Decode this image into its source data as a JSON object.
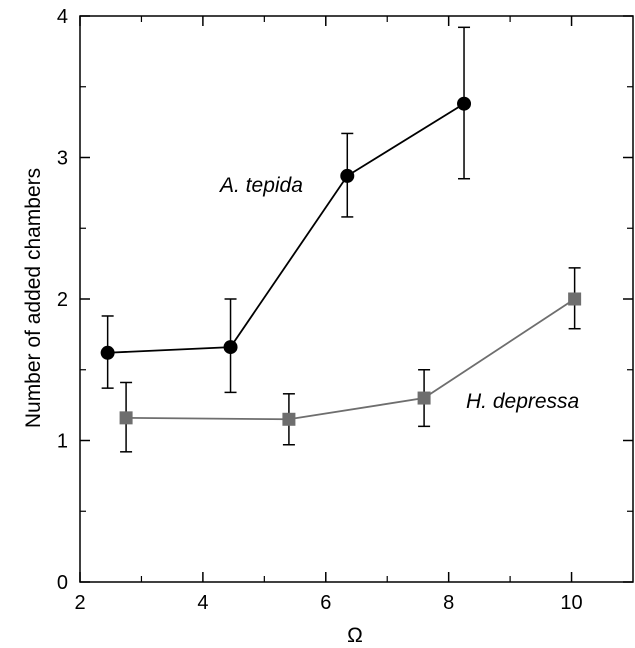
{
  "chart_data": {
    "type": "line",
    "xlabel": "Ω",
    "ylabel": "Number of added chambers",
    "xlim": [
      2,
      11
    ],
    "ylim": [
      0,
      4
    ],
    "x_ticks": [
      2,
      4,
      6,
      8,
      10
    ],
    "y_ticks": [
      0,
      1,
      2,
      3,
      4
    ],
    "minor_x_ticks": [
      3,
      5,
      7,
      9
    ],
    "minor_y_ticks": [
      0.5,
      1.5,
      2.5,
      3.5
    ],
    "grid": false,
    "series": [
      {
        "name": "A. tepida",
        "marker": "circle",
        "color": "#000000",
        "points": [
          {
            "x": 2.45,
            "y": 1.62,
            "err_low": 1.37,
            "err_high": 1.88
          },
          {
            "x": 4.45,
            "y": 1.66,
            "err_low": 1.34,
            "err_high": 2.0
          },
          {
            "x": 6.35,
            "y": 2.87,
            "err_low": 2.58,
            "err_high": 3.17
          },
          {
            "x": 8.25,
            "y": 3.38,
            "err_low": 2.85,
            "err_high": 3.92
          }
        ]
      },
      {
        "name": "H. depressa",
        "marker": "square",
        "color": "#6e6e6e",
        "points": [
          {
            "x": 2.75,
            "y": 1.16,
            "err_low": 0.92,
            "err_high": 1.41
          },
          {
            "x": 5.4,
            "y": 1.15,
            "err_low": 0.97,
            "err_high": 1.33
          },
          {
            "x": 7.6,
            "y": 1.3,
            "err_low": 1.1,
            "err_high": 1.5
          },
          {
            "x": 10.05,
            "y": 2.0,
            "err_low": 1.79,
            "err_high": 2.22
          }
        ]
      }
    ]
  }
}
